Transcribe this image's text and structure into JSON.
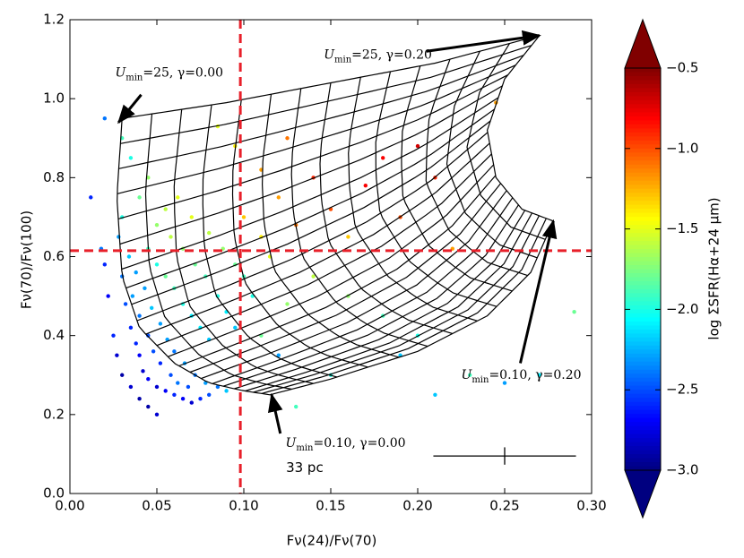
{
  "chart_data": {
    "type": "scatter",
    "xlabel": "Fν(24)/Fν(70)",
    "ylabel": "Fν(70)/Fν(100)",
    "colorbar_label": "log ΣSFR(Hα+24 μm)",
    "xlim": [
      0,
      0.3
    ],
    "ylim": [
      0,
      1.2
    ],
    "xticks": [
      {
        "value": 0,
        "label": "0.00"
      },
      {
        "value": 0.05,
        "label": "0.05"
      },
      {
        "value": 0.1,
        "label": "0.10"
      },
      {
        "value": 0.15,
        "label": "0.15"
      },
      {
        "value": 0.2,
        "label": "0.20"
      },
      {
        "value": 0.25,
        "label": "0.25"
      },
      {
        "value": 0.3,
        "label": "0.30"
      }
    ],
    "yticks": [
      {
        "value": 0,
        "label": "0.0"
      },
      {
        "value": 0.2,
        "label": "0.2"
      },
      {
        "value": 0.4,
        "label": "0.4"
      },
      {
        "value": 0.6,
        "label": "0.6"
      },
      {
        "value": 0.8,
        "label": "0.8"
      },
      {
        "value": 1,
        "label": "1.0"
      },
      {
        "value": 1.2,
        "label": "1.2"
      }
    ],
    "clim": [
      -3,
      -0.5
    ],
    "cticks": [
      {
        "value": -3,
        "label": "−3.0"
      },
      {
        "value": -2.5,
        "label": "−2.5"
      },
      {
        "value": -2,
        "label": "−2.0"
      },
      {
        "value": -1.5,
        "label": "−1.5"
      },
      {
        "value": -1,
        "label": "−1.0"
      },
      {
        "value": -0.5,
        "label": "−0.5"
      }
    ],
    "colormap": "jet",
    "vline": 0.098,
    "hline": 0.615,
    "line_color": "#e8202a",
    "series": [
      {
        "x": [
          0.03,
          0.032,
          0.035,
          0.038,
          0.04,
          0.042,
          0.045,
          0.05,
          0.055,
          0.06,
          0.065,
          0.07,
          0.075,
          0.08,
          0.036,
          0.04,
          0.045,
          0.048,
          0.052,
          0.058,
          0.062,
          0.068,
          0.034,
          0.038,
          0.043,
          0.047,
          0.052,
          0.056,
          0.06,
          0.066,
          0.072,
          0.078,
          0.085,
          0.09,
          0.028,
          0.03,
          0.025,
          0.027,
          0.03,
          0.035,
          0.04,
          0.045,
          0.05,
          0.02,
          0.018,
          0.022,
          0.045,
          0.05,
          0.055,
          0.06,
          0.065,
          0.07,
          0.075,
          0.08,
          0.05,
          0.058,
          0.065,
          0.072,
          0.078,
          0.085,
          0.09,
          0.095,
          0.055,
          0.062,
          0.07,
          0.08,
          0.088,
          0.095,
          0.1,
          0.105,
          0.04,
          0.045,
          0.035,
          0.03,
          0.02,
          0.012,
          0.1,
          0.11,
          0.115,
          0.12,
          0.13,
          0.14,
          0.15,
          0.16,
          0.17,
          0.18,
          0.19,
          0.2,
          0.21,
          0.22,
          0.11,
          0.125,
          0.095,
          0.085,
          0.14,
          0.16,
          0.18,
          0.2,
          0.23,
          0.25,
          0.27,
          0.29,
          0.21,
          0.15,
          0.13,
          0.12,
          0.245,
          0.19,
          0.11,
          0.125
        ],
        "values": [
          0.55,
          0.48,
          0.42,
          0.38,
          0.35,
          0.31,
          0.29,
          0.27,
          0.26,
          0.25,
          0.24,
          0.23,
          0.24,
          0.25,
          0.5,
          0.45,
          0.4,
          0.36,
          0.33,
          0.3,
          0.28,
          0.27,
          0.6,
          0.56,
          0.52,
          0.47,
          0.43,
          0.39,
          0.36,
          0.33,
          0.3,
          0.28,
          0.27,
          0.26,
          0.65,
          0.7,
          0.4,
          0.35,
          0.3,
          0.27,
          0.24,
          0.22,
          0.2,
          0.58,
          0.62,
          0.5,
          0.62,
          0.58,
          0.55,
          0.52,
          0.48,
          0.45,
          0.42,
          0.39,
          0.68,
          0.65,
          0.62,
          0.58,
          0.55,
          0.5,
          0.46,
          0.42,
          0.72,
          0.75,
          0.7,
          0.66,
          0.62,
          0.58,
          0.55,
          0.5,
          0.75,
          0.8,
          0.85,
          0.9,
          0.95,
          0.75,
          0.7,
          0.65,
          0.6,
          0.75,
          0.68,
          0.8,
          0.72,
          0.65,
          0.78,
          0.85,
          0.7,
          0.88,
          0.8,
          0.62,
          0.82,
          0.9,
          0.88,
          0.93,
          0.55,
          0.5,
          0.45,
          0.4,
          0.3,
          0.28,
          0.3,
          0.46,
          0.25,
          0.3,
          0.22,
          0.35,
          0.99,
          0.35,
          0.4,
          0.48
        ],
        "c": [
          -2.4,
          -2.5,
          -2.6,
          -2.6,
          -2.7,
          -2.8,
          -2.7,
          -2.8,
          -2.7,
          -2.6,
          -2.7,
          -2.8,
          -2.6,
          -2.5,
          -2.3,
          -2.4,
          -2.5,
          -2.5,
          -2.6,
          -2.5,
          -2.4,
          -2.5,
          -2.2,
          -2.3,
          -2.3,
          -2.2,
          -2.3,
          -2.3,
          -2.4,
          -2.3,
          -2.4,
          -2.3,
          -2.4,
          -2.2,
          -2.3,
          -2.0,
          -2.6,
          -2.8,
          -2.9,
          -2.8,
          -2.9,
          -2.9,
          -2.8,
          -2.6,
          -2.4,
          -2.7,
          -1.9,
          -2.0,
          -1.8,
          -1.9,
          -2.0,
          -2.1,
          -2.1,
          -2.2,
          -1.7,
          -1.6,
          -1.7,
          -1.8,
          -1.9,
          -2.0,
          -2.1,
          -2.2,
          -1.6,
          -1.5,
          -1.5,
          -1.6,
          -1.7,
          -1.8,
          -1.9,
          -2.0,
          -1.8,
          -1.7,
          -2.0,
          -1.9,
          -2.4,
          -2.6,
          -1.3,
          -1.4,
          -1.5,
          -1.2,
          -1.1,
          -0.9,
          -1.0,
          -1.3,
          -0.8,
          -0.8,
          -1.0,
          -0.7,
          -0.9,
          -1.2,
          -1.2,
          -1.1,
          -1.4,
          -1.5,
          -1.6,
          -1.7,
          -1.9,
          -2.0,
          -1.9,
          -2.3,
          -2.1,
          -1.8,
          -2.2,
          -2.0,
          -1.9,
          -2.3,
          -1.2,
          -2.2,
          -1.8,
          -1.7
        ]
      }
    ],
    "model_grid": {
      "bottom": [
        [
          0.115,
          0.25
        ],
        [
          0.15,
          0.29
        ],
        [
          0.2,
          0.36
        ],
        [
          0.24,
          0.45
        ],
        [
          0.265,
          0.56
        ],
        [
          0.278,
          0.69
        ]
      ],
      "top": [
        [
          0.03,
          0.95
        ],
        [
          0.09,
          0.99
        ],
        [
          0.15,
          1.04
        ],
        [
          0.21,
          1.09
        ],
        [
          0.27,
          1.16
        ]
      ],
      "left": [
        [
          0.115,
          0.25
        ],
        [
          0.1,
          0.26
        ],
        [
          0.08,
          0.28
        ],
        [
          0.06,
          0.33
        ],
        [
          0.04,
          0.42
        ],
        [
          0.03,
          0.55
        ],
        [
          0.027,
          0.75
        ],
        [
          0.03,
          0.95
        ]
      ],
      "right": [
        [
          0.278,
          0.69
        ],
        [
          0.26,
          0.72
        ],
        [
          0.245,
          0.8
        ],
        [
          0.24,
          0.92
        ],
        [
          0.25,
          1.05
        ],
        [
          0.27,
          1.16
        ]
      ],
      "divisions": [
        14,
        22
      ]
    },
    "annotations": [
      {
        "parts": [
          "U",
          "min",
          "=25, γ=0.00"
        ],
        "text_xy": [
          0.026,
          1.065
        ],
        "arrow_start": [
          0.041,
          1.01
        ],
        "xy": [
          0.028,
          0.94
        ]
      },
      {
        "parts": [
          "U",
          "min",
          "=25, γ=0.20"
        ],
        "text_xy": [
          0.146,
          1.11
        ],
        "arrow_start": [
          0.205,
          1.12
        ],
        "xy": [
          0.27,
          1.16
        ]
      },
      {
        "parts": [
          "U",
          "min",
          "=0.10, γ=0.20"
        ],
        "text_xy": [
          0.225,
          0.3
        ],
        "arrow_start": [
          0.259,
          0.33
        ],
        "xy": [
          0.278,
          0.69
        ]
      },
      {
        "parts": [
          "U",
          "min",
          "=0.10, γ=0.00"
        ],
        "text_xy": [
          0.124,
          0.127
        ],
        "arrow_start": [
          0.121,
          0.152
        ],
        "xy": [
          0.116,
          0.25
        ]
      }
    ],
    "scale_label": {
      "text": "33 pc",
      "xy": [
        0.135,
        0.065
      ]
    },
    "error_cross": {
      "x": 0.25,
      "y": 0.095,
      "xerr": 0.041,
      "yerr": 0.022
    }
  }
}
